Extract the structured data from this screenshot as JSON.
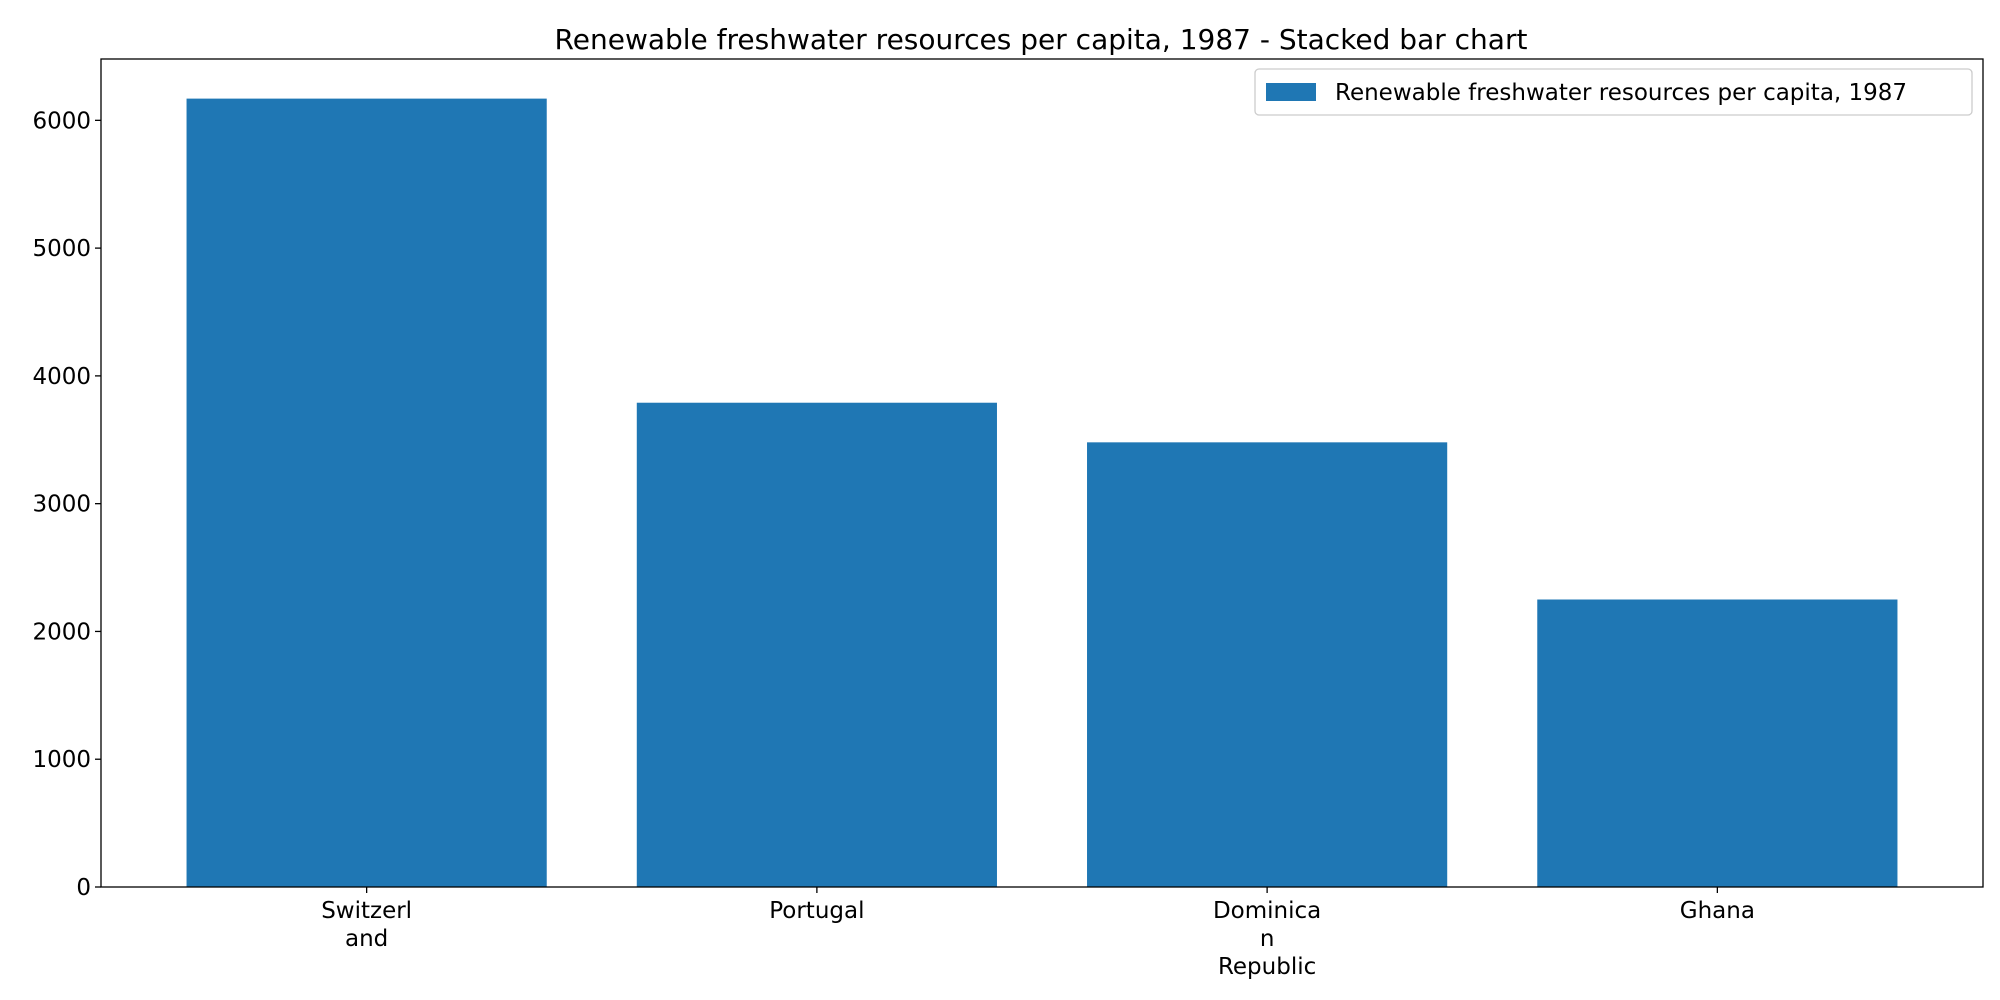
{
  "chart_data": {
    "type": "bar",
    "title": "Renewable freshwater resources per capita, 1987 - Stacked bar chart",
    "xlabel": "",
    "ylabel": "",
    "categories": [
      "Switzerland",
      "Portugal",
      "Dominican Republic",
      "Ghana"
    ],
    "category_display_lines": [
      [
        "Switzerl",
        "and"
      ],
      [
        "Portugal"
      ],
      [
        "Dominica",
        "n",
        "Republic"
      ],
      [
        "Ghana"
      ]
    ],
    "series": [
      {
        "name": "Renewable freshwater resources per capita, 1987",
        "values": [
          6170,
          3790,
          3480,
          2250
        ],
        "color": "#1f77b4"
      }
    ],
    "ylim": [
      0,
      6480
    ],
    "yticks": [
      0,
      1000,
      2000,
      3000,
      4000,
      5000,
      6000
    ],
    "grid": false,
    "legend_position": "top-right"
  }
}
